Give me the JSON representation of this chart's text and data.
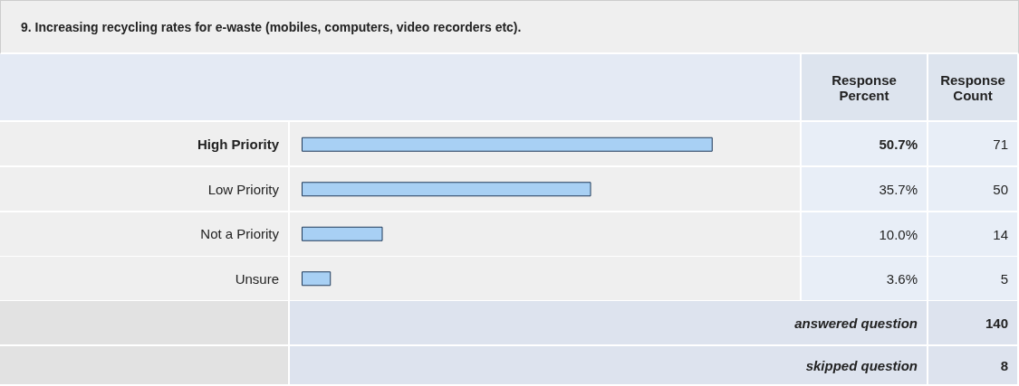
{
  "chart_data": {
    "type": "bar",
    "orientation": "horizontal",
    "title": "9. Increasing recycling rates for e-waste (mobiles, computers, video recorders etc).",
    "categories": [
      "High Priority",
      "Low Priority",
      "Not a Priority",
      "Unsure"
    ],
    "values": [
      50.7,
      35.7,
      10.0,
      3.6
    ],
    "value_labels": [
      "50.7%",
      "35.7%",
      "10.0%",
      "3.6%"
    ],
    "color": "#a8d0f4",
    "annotations": [
      "Response Percent",
      "Response Count",
      "71",
      "50",
      "14",
      "5",
      "answered question",
      "140",
      "skipped question",
      "8"
    ]
  }
}
